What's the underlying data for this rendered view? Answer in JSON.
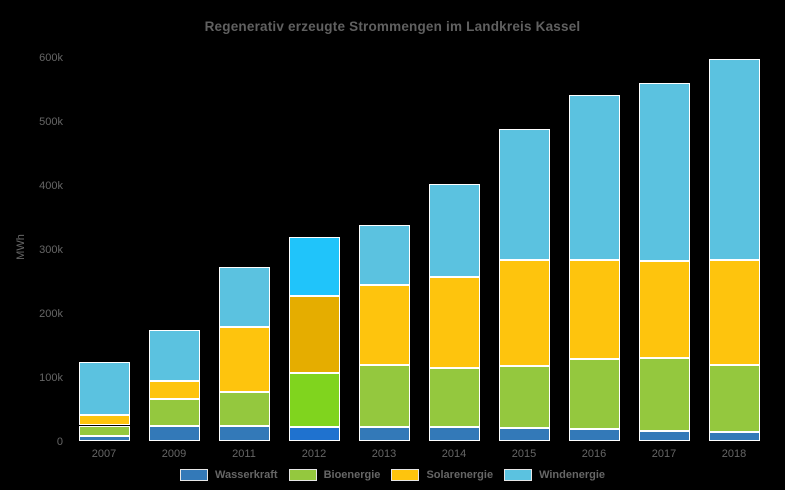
{
  "chart_data": {
    "type": "bar",
    "stacked": true,
    "title": "Regenerativ erzeugte Strommengen im Landkreis Kassel",
    "xlabel": "",
    "ylabel": "MWh",
    "categories": [
      "2007",
      "2009",
      "2011",
      "2012",
      "2013",
      "2014",
      "2015",
      "2016",
      "2017",
      "2018"
    ],
    "series": [
      {
        "name": "Wasserkraft",
        "color": "#3379b8",
        "highlight_color": "#1f72cf",
        "values": [
          9000,
          24000,
          24000,
          22000,
          23000,
          23000,
          21000,
          20000,
          17000,
          15000
        ]
      },
      {
        "name": "Bioenergie",
        "color": "#94c83e",
        "highlight_color": "#80d41e",
        "values": [
          16000,
          43000,
          53000,
          85000,
          97000,
          92000,
          97000,
          109000,
          114000,
          105000
        ]
      },
      {
        "name": "Solarenergie",
        "color": "#fec40d",
        "highlight_color": "#e5ad00",
        "values": [
          17000,
          27000,
          102000,
          121000,
          125000,
          142000,
          165000,
          155000,
          151000,
          164000
        ]
      },
      {
        "name": "Windenergie",
        "color": "#5bc2e0",
        "highlight_color": "#20c4fa",
        "values": [
          82000,
          81000,
          94000,
          92000,
          93000,
          145000,
          206000,
          258000,
          278000,
          313000
        ]
      }
    ],
    "totals": [
      124000,
      175000,
      273000,
      320000,
      338000,
      402000,
      489000,
      542000,
      560000,
      597000
    ],
    "highlighted_category": "2012",
    "y_ticks": [
      0,
      100000,
      200000,
      300000,
      400000,
      500000,
      600000
    ],
    "y_tick_labels": [
      "0",
      "100k",
      "200k",
      "300k",
      "400k",
      "500k",
      "600k"
    ],
    "ylim": [
      0,
      620000
    ],
    "grid": false,
    "legend_position": "bottom",
    "stack_order_bottom_to_top": [
      "Wasserkraft",
      "Bioenergie",
      "Solarenergie",
      "Windenergie"
    ]
  }
}
